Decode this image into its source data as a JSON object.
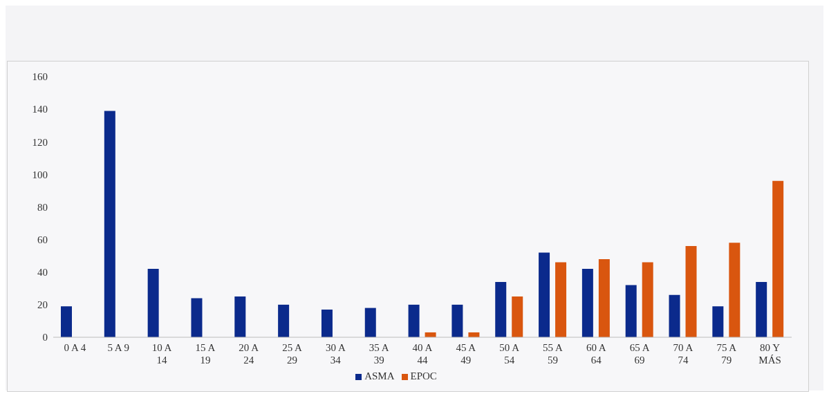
{
  "chart_data": {
    "type": "bar",
    "categories": [
      "0 A 4",
      "5 A 9",
      "10 A 14",
      "15 A 19",
      "20 A 24",
      "25 A 29",
      "30 A 34",
      "35 A 39",
      "40 A 44",
      "45 A 49",
      "50 A 54",
      "55 A 59",
      "60 A 64",
      "65 A 69",
      "70 A 74",
      "75 A 79",
      "80 Y MÁS"
    ],
    "series": [
      {
        "name": "ASMA",
        "color": "#0b2a8c",
        "values": [
          19,
          139,
          42,
          24,
          25,
          20,
          17,
          18,
          20,
          20,
          34,
          52,
          42,
          32,
          26,
          19,
          34
        ]
      },
      {
        "name": "EPOC",
        "color": "#d9560f",
        "values": [
          0,
          0,
          0,
          0,
          0,
          0,
          0,
          0,
          3,
          3,
          25,
          46,
          48,
          46,
          56,
          58,
          96
        ]
      }
    ],
    "ylim": [
      0,
      160
    ],
    "yticks": [
      0,
      20,
      40,
      60,
      80,
      100,
      120,
      140,
      160
    ],
    "grid": false,
    "legend": "bottom"
  }
}
